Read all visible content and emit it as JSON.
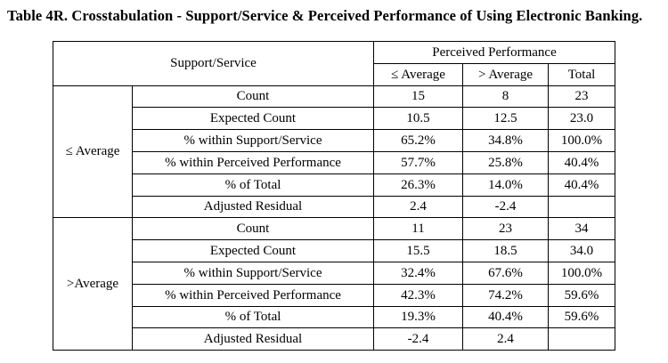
{
  "title": "Table 4R. Crosstabulation - Support/Service & Perceived Performance of Using Electronic Banking.",
  "header": {
    "row_label": "Support/Service",
    "column_group": "Perceived Performance",
    "columns": [
      "≤ Average",
      "> Average",
      "Total"
    ]
  },
  "groups": [
    {
      "label": "≤ Average",
      "rows": [
        {
          "stat": "Count",
          "values": [
            "15",
            "8",
            "23"
          ]
        },
        {
          "stat": "Expected Count",
          "values": [
            "10.5",
            "12.5",
            "23.0"
          ]
        },
        {
          "stat": "% within Support/Service",
          "values": [
            "65.2%",
            "34.8%",
            "100.0%"
          ]
        },
        {
          "stat": "% within Perceived Performance",
          "values": [
            "57.7%",
            "25.8%",
            "40.4%"
          ]
        },
        {
          "stat": "% of Total",
          "values": [
            "26.3%",
            "14.0%",
            "40.4%"
          ]
        },
        {
          "stat": "Adjusted Residual",
          "values": [
            "2.4",
            "-2.4",
            ""
          ]
        }
      ]
    },
    {
      "label": ">Average",
      "rows": [
        {
          "stat": "Count",
          "values": [
            "11",
            "23",
            "34"
          ]
        },
        {
          "stat": "Expected Count",
          "values": [
            "15.5",
            "18.5",
            "34.0"
          ]
        },
        {
          "stat": "% within Support/Service",
          "values": [
            "32.4%",
            "67.6%",
            "100.0%"
          ]
        },
        {
          "stat": "% within Perceived Performance",
          "values": [
            "42.3%",
            "74.2%",
            "59.6%"
          ]
        },
        {
          "stat": "% of Total",
          "values": [
            "19.3%",
            "40.4%",
            "59.6%"
          ]
        },
        {
          "stat": "Adjusted Residual",
          "values": [
            "-2.4",
            "2.4",
            ""
          ]
        }
      ]
    }
  ]
}
